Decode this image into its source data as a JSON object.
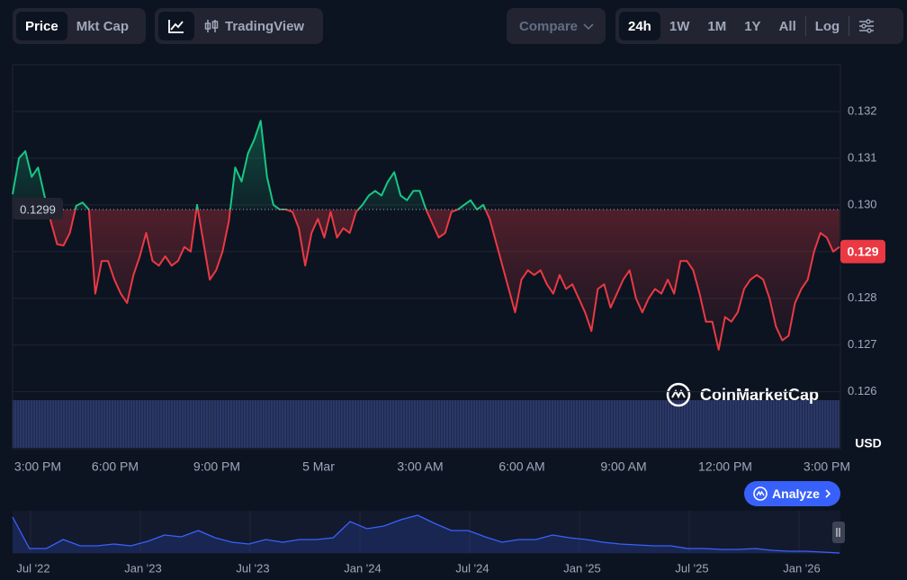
{
  "toolbar": {
    "view_tabs": [
      "Price",
      "Mkt Cap"
    ],
    "chart_button": "TradingView",
    "compare": "Compare",
    "ranges": [
      "24h",
      "1W",
      "1M",
      "1Y",
      "All"
    ],
    "log": "Log"
  },
  "chart_data": {
    "type": "line",
    "ylim": [
      0.1248,
      0.133
    ],
    "yticks": [
      {
        "value": 0.126,
        "label": "0.126"
      },
      {
        "value": 0.127,
        "label": "0.127"
      },
      {
        "value": 0.128,
        "label": "0.128"
      },
      {
        "value": 0.129,
        "label": "0.129"
      },
      {
        "value": 0.13,
        "label": "0.130"
      },
      {
        "value": 0.131,
        "label": "0.131"
      },
      {
        "value": 0.132,
        "label": "0.132"
      }
    ],
    "y_unit": "USD",
    "x_labels": [
      "3:00 PM",
      "6:00 PM",
      "9:00 PM",
      "5 Mar",
      "3:00 AM",
      "6:00 AM",
      "9:00 AM",
      "12:00 PM",
      "3:00 PM"
    ],
    "grid": true,
    "color_above": "#16c784",
    "color_below": "#ea3943",
    "reference_value": 0.1299,
    "current_price": 0.129,
    "watermark": "CoinMarketCap",
    "series": [
      {
        "values": [
          0.13023,
          0.131,
          0.13115,
          0.1306,
          0.1308,
          0.1302,
          0.12965,
          0.12916,
          0.12913,
          0.1294,
          0.12998,
          0.13005,
          0.1299,
          0.1281,
          0.1288,
          0.1288,
          0.1284,
          0.1281,
          0.1279,
          0.1285,
          0.1289,
          0.1294,
          0.1288,
          0.1287,
          0.1289,
          0.1287,
          0.1288,
          0.1291,
          0.129,
          0.13,
          0.1292,
          0.1284,
          0.1286,
          0.129,
          0.12965,
          0.1308,
          0.1305,
          0.1311,
          0.1314,
          0.1318,
          0.1306,
          0.13,
          0.1299,
          0.1299,
          0.12985,
          0.1295,
          0.1287,
          0.1294,
          0.1297,
          0.1293,
          0.12985,
          0.1293,
          0.1295,
          0.1294,
          0.12985,
          0.13,
          0.1302,
          0.1303,
          0.1302,
          0.1305,
          0.1307,
          0.1302,
          0.1301,
          0.1303,
          0.1303,
          0.1299,
          0.1296,
          0.1293,
          0.1294,
          0.12985,
          0.1299,
          0.13,
          0.1301,
          0.1299,
          0.13,
          0.1297,
          0.1292,
          0.1287,
          0.1282,
          0.1277,
          0.1284,
          0.1286,
          0.1285,
          0.1286,
          0.1283,
          0.1281,
          0.1285,
          0.1282,
          0.1283,
          0.128,
          0.1277,
          0.1273,
          0.1282,
          0.1283,
          0.1278,
          0.1281,
          0.1284,
          0.1286,
          0.128,
          0.1277,
          0.128,
          0.1282,
          0.1281,
          0.1284,
          0.1281,
          0.1288,
          0.1288,
          0.1286,
          0.1281,
          0.1275,
          0.1275,
          0.1269,
          0.1276,
          0.1275,
          0.1277,
          0.1282,
          0.1284,
          0.1285,
          0.1284,
          0.128,
          0.1274,
          0.1271,
          0.1272,
          0.1279,
          0.1282,
          0.1284,
          0.129,
          0.1294,
          0.1293,
          0.129,
          0.1291
        ]
      }
    ]
  },
  "navigator": {
    "type": "line",
    "color": "#3861fb",
    "ylim": [
      0,
      47
    ],
    "x_labels": [
      "Jul '22",
      "Jan '23",
      "Jul '23",
      "Jan '24",
      "Jul '24",
      "Jan '25",
      "Jul '25",
      "Jan '26"
    ],
    "values": [
      40,
      5,
      5,
      15,
      8,
      8,
      10,
      8,
      13,
      20,
      18,
      25,
      17,
      12,
      10,
      15,
      12,
      15,
      15,
      17,
      35,
      27,
      30,
      37,
      42,
      33,
      25,
      25,
      18,
      12,
      15,
      15,
      20,
      17,
      15,
      12,
      10,
      9,
      8,
      8,
      5,
      5,
      4,
      4,
      5,
      3,
      2,
      2,
      1,
      0
    ]
  },
  "analyze_button": "Analyze"
}
